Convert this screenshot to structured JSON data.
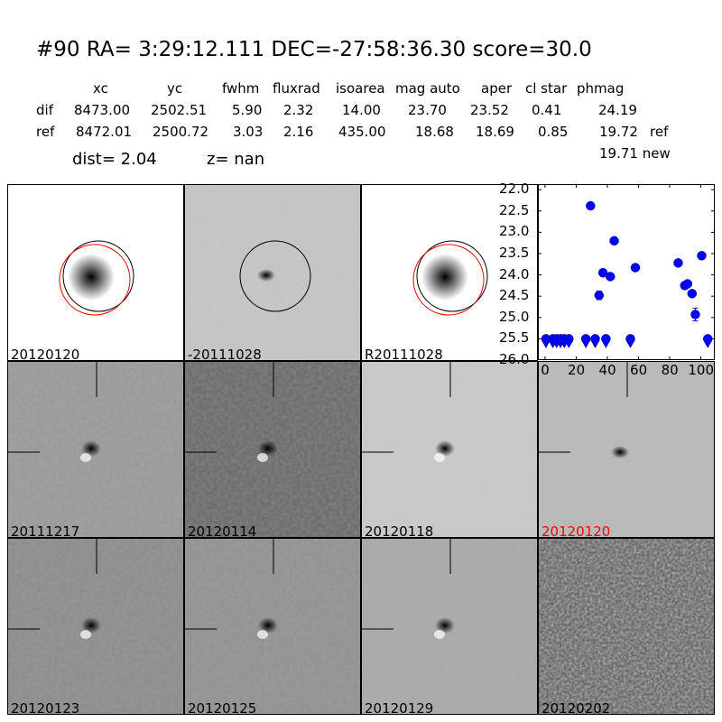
{
  "header": {
    "title": "#90   RA= 3:29:12.111 DEC=-27:58:36.30      score=30.0",
    "columns": [
      "xc",
      "yc",
      "fwhm",
      "fluxrad",
      "isoarea",
      "mag auto",
      "aper",
      "cl star",
      "phmag"
    ],
    "rows": [
      {
        "label": "dif",
        "values": [
          "8473.00",
          "2502.51",
          "5.90",
          "2.32",
          "14.00",
          "23.70",
          "23.52",
          "0.41",
          "24.19"
        ],
        "suffix": ""
      },
      {
        "label": "ref",
        "values": [
          "8472.01",
          "2500.72",
          "3.03",
          "2.16",
          "435.00",
          "18.68",
          "18.69",
          "0.85",
          "19.72"
        ],
        "suffix": "ref"
      }
    ],
    "new_phmag": "19.71 new",
    "dist": "dist=  2.04",
    "z": "z=   nan"
  },
  "panels": [
    {
      "label": "20120120",
      "bg": "#ffffff",
      "noise": 0,
      "blob": "dark-psf",
      "circles": true,
      "label_color": "#000000"
    },
    {
      "label": "-20111028",
      "bg": "#c6c6c6",
      "noise": 0.35,
      "blob": "small",
      "circles": "black-only",
      "label_color": "#000000"
    },
    {
      "label": "R20111028",
      "bg": "#ffffff",
      "noise": 0,
      "blob": "dark-psf",
      "circles": true,
      "label_color": "#000000"
    },
    {
      "label": "20111217",
      "bg": "#9b9b9b",
      "noise": 0.25,
      "blob": "dipole",
      "crosshair": true,
      "label_color": "#000000"
    },
    {
      "label": "20120114",
      "bg": "#6f6f6f",
      "noise": 0.25,
      "blob": "dipole",
      "crosshair": true,
      "label_color": "#000000"
    },
    {
      "label": "20120118",
      "bg": "#c9c9c9",
      "noise": 0.15,
      "blob": "dipole",
      "crosshair": true,
      "label_color": "#000000"
    },
    {
      "label": "20120120",
      "bg": "#b9b9b9",
      "noise": 0.4,
      "blob": "small",
      "crosshair": true,
      "label_color": "#ff0000"
    },
    {
      "label": "20120123",
      "bg": "#8e8e8e",
      "noise": 0.2,
      "blob": "dipole",
      "crosshair": true,
      "label_color": "#000000"
    },
    {
      "label": "20120125",
      "bg": "#939393",
      "noise": 0.2,
      "blob": "dipole",
      "crosshair": true,
      "label_color": "#000000"
    },
    {
      "label": "20120129",
      "bg": "#aaaaaa",
      "noise": 0.15,
      "blob": "dipole",
      "crosshair": true,
      "label_color": "#000000"
    },
    {
      "label": "20120202",
      "bg": "#6a6a6a",
      "noise": 0.9,
      "blob": "none",
      "crosshair": false,
      "label_color": "#000000"
    }
  ],
  "chart_data": {
    "type": "scatter",
    "title": "",
    "xlabel": "",
    "ylabel": "",
    "xlim": [
      -4.6,
      109
    ],
    "ylim": [
      26.0,
      21.87
    ],
    "y_inverted": true,
    "xticks": [
      "0",
      "20",
      "40",
      "60",
      "80",
      "100"
    ],
    "yticks": [
      "22.0",
      "22.5",
      "23.0",
      "23.5",
      "24.0",
      "24.5",
      "25.0",
      "25.5",
      "26.0"
    ],
    "marker_color": "#0000ff",
    "detections": [
      {
        "x": 29.2,
        "y": 22.38,
        "err": 0.03
      },
      {
        "x": 34.7,
        "y": 24.48,
        "err": 0.1
      },
      {
        "x": 37.2,
        "y": 23.95,
        "err": 0.04
      },
      {
        "x": 41.9,
        "y": 24.04,
        "err": 0.04
      },
      {
        "x": 44.4,
        "y": 23.2,
        "err": 0.03
      },
      {
        "x": 58.0,
        "y": 23.83,
        "err": 0.07
      },
      {
        "x": 85.5,
        "y": 23.72,
        "err": 0.05
      },
      {
        "x": 89.7,
        "y": 24.25,
        "err": 0.05
      },
      {
        "x": 91.5,
        "y": 24.21,
        "err": 0.07
      },
      {
        "x": 94.4,
        "y": 24.44,
        "err": 0.05
      },
      {
        "x": 96.5,
        "y": 24.93,
        "err": 0.15
      },
      {
        "x": 100.6,
        "y": 23.55,
        "err": 0.04
      }
    ],
    "upper_limits": [
      {
        "x": 0.6,
        "y": 25.5
      },
      {
        "x": 5.0,
        "y": 25.5
      },
      {
        "x": 7.4,
        "y": 25.5
      },
      {
        "x": 9.9,
        "y": 25.5
      },
      {
        "x": 12.4,
        "y": 25.5
      },
      {
        "x": 15.3,
        "y": 25.5
      },
      {
        "x": 26.2,
        "y": 25.5
      },
      {
        "x": 32.2,
        "y": 25.5
      },
      {
        "x": 39.1,
        "y": 25.5
      },
      {
        "x": 54.8,
        "y": 25.5
      },
      {
        "x": 104.5,
        "y": 25.5
      }
    ]
  }
}
